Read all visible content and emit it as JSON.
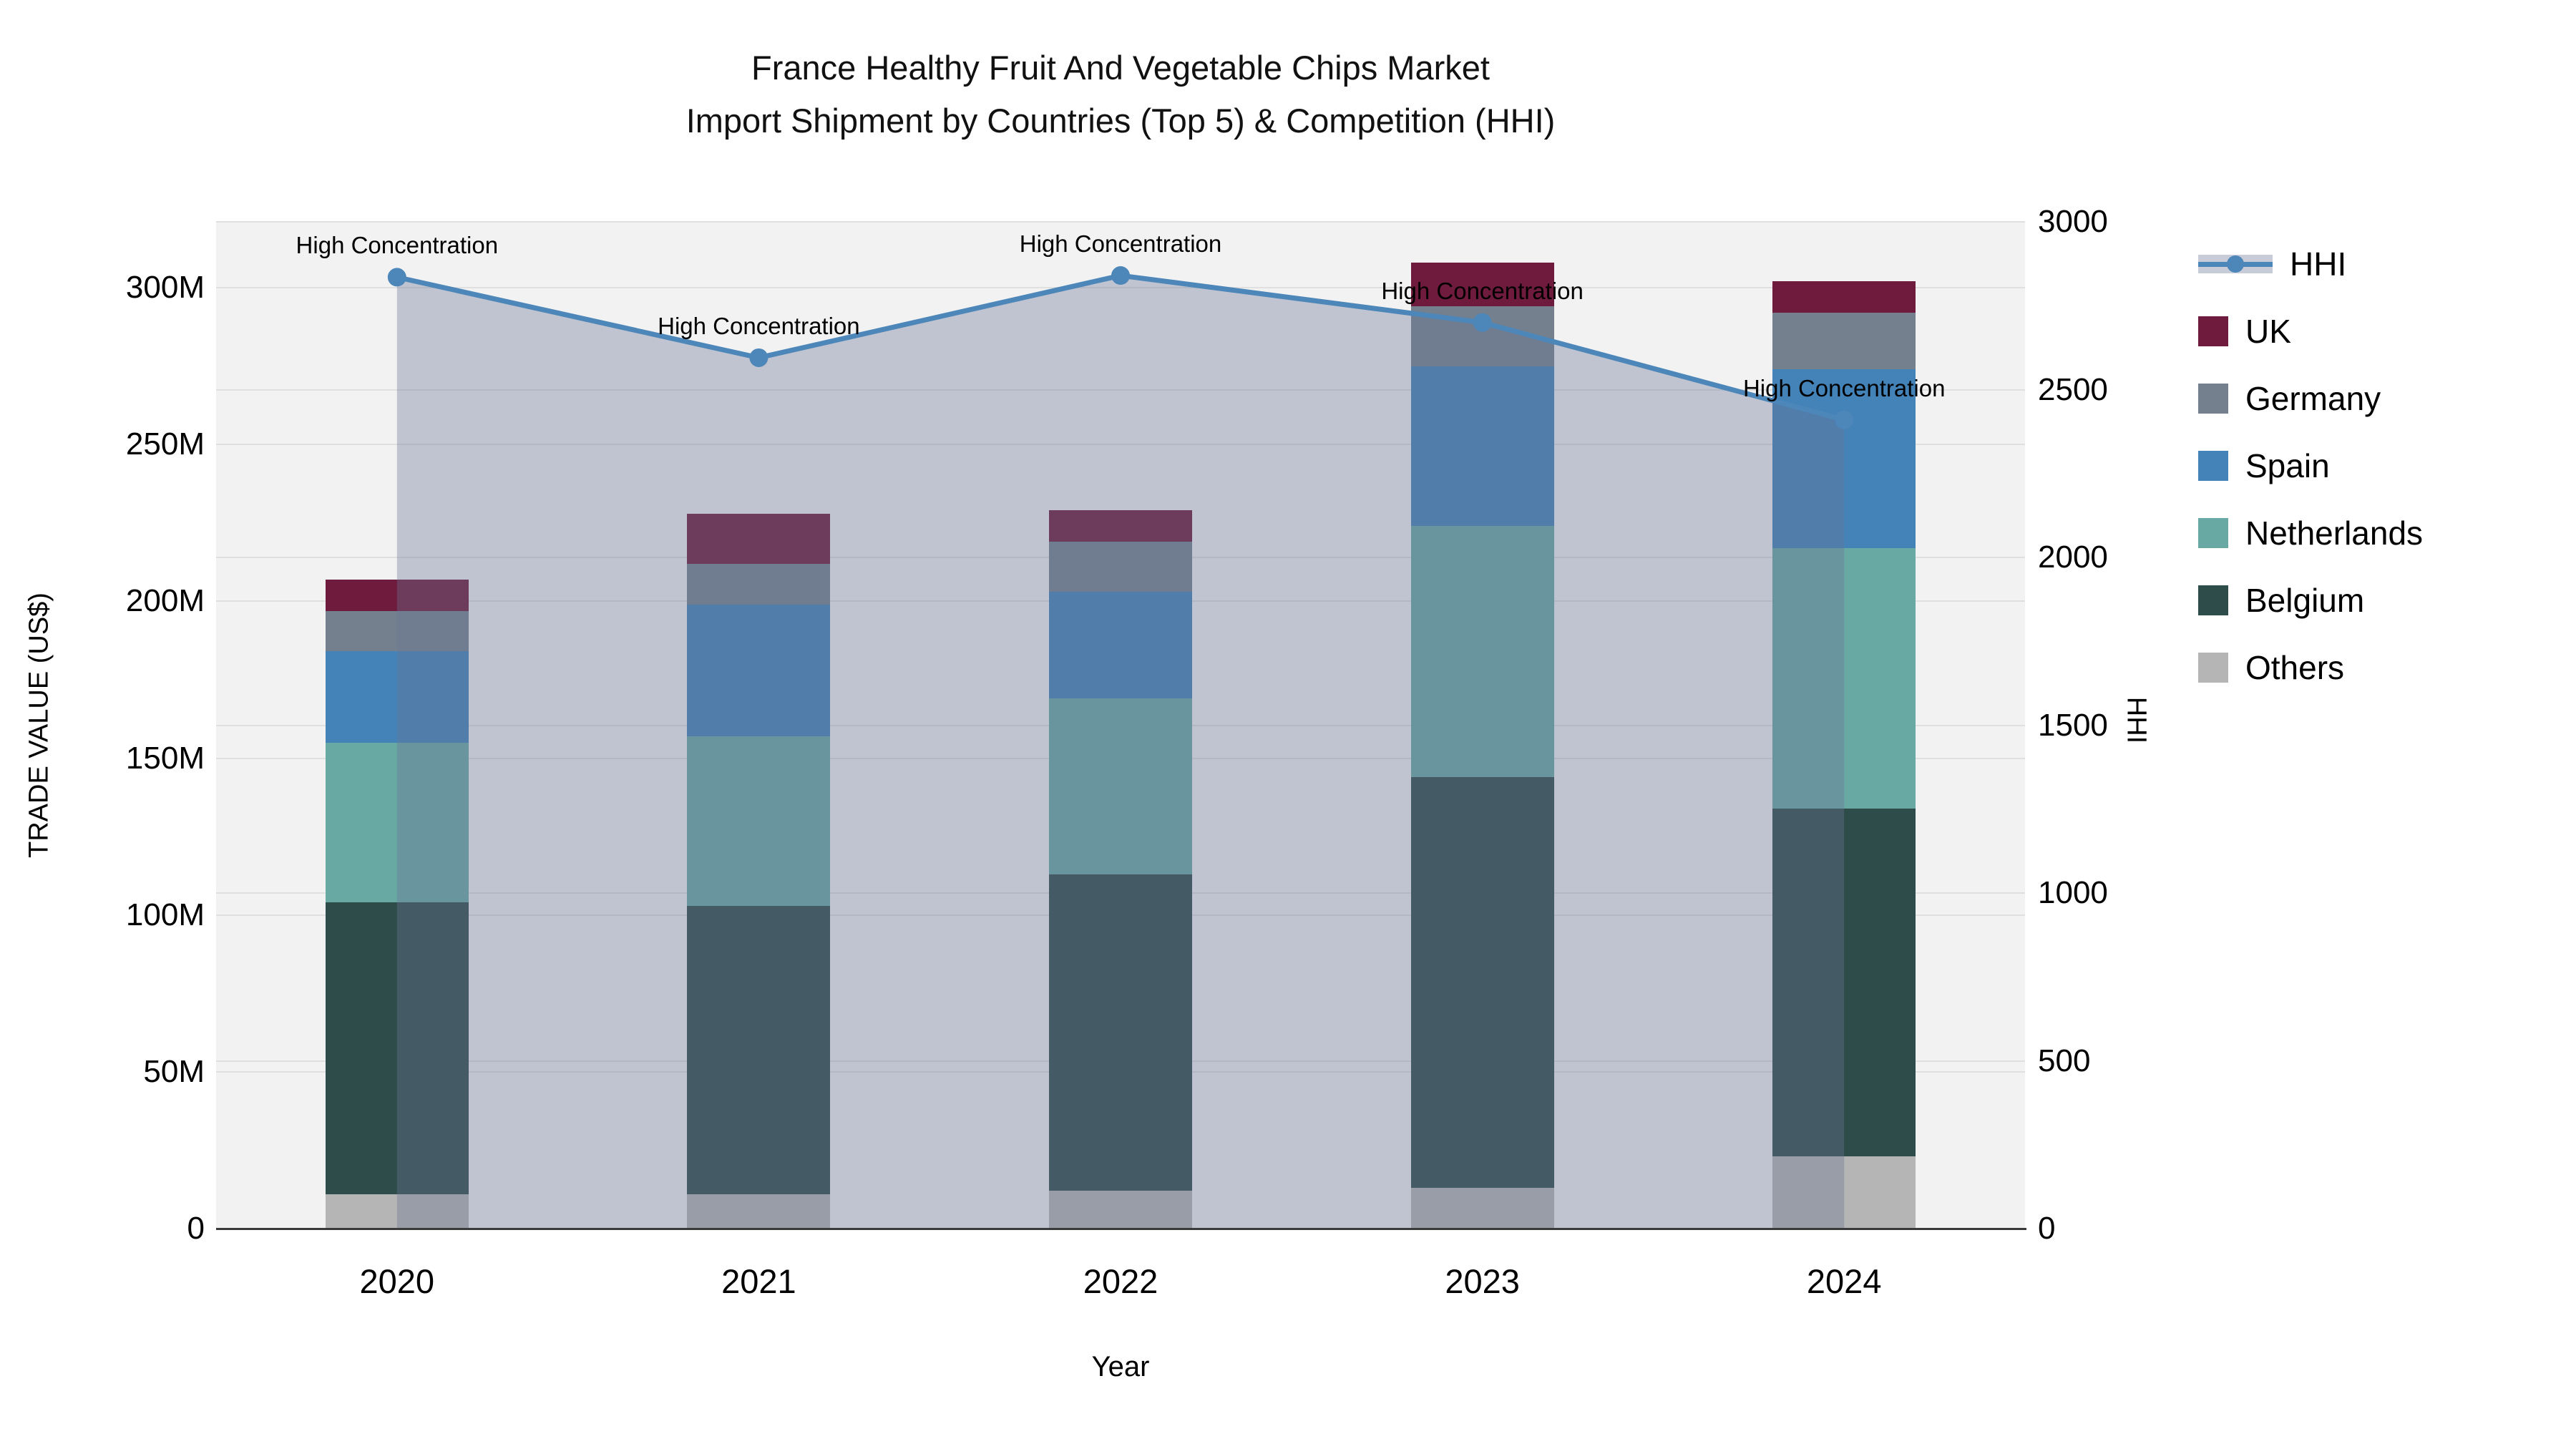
{
  "title": {
    "line1": "France Healthy Fruit And Vegetable Chips Market",
    "line2": "Import Shipment by Countries (Top 5) & Competition (HHI)"
  },
  "axes": {
    "left": {
      "title": "TRADE VALUE (US$)",
      "ticks": [
        "0",
        "50M",
        "100M",
        "150M",
        "200M",
        "250M",
        "300M"
      ]
    },
    "right": {
      "title": "HHI",
      "ticks": [
        "0",
        "500",
        "1000",
        "1500",
        "2000",
        "2500",
        "3000"
      ]
    },
    "bottom": {
      "title": "Year",
      "ticks": [
        "2020",
        "2021",
        "2022",
        "2023",
        "2024"
      ]
    }
  },
  "legend": {
    "hhi_label": "HHI",
    "items": [
      {
        "label": "UK",
        "color": "#6f1b3d"
      },
      {
        "label": "Germany",
        "color": "#74808e"
      },
      {
        "label": "Spain",
        "color": "#4383b8"
      },
      {
        "label": "Netherlands",
        "color": "#69a9a4"
      },
      {
        "label": "Belgium",
        "color": "#2e4c49"
      },
      {
        "label": "Others",
        "color": "#b4b5b4"
      }
    ]
  },
  "chart_data": {
    "type": "bar+line",
    "title": "France Healthy Fruit And Vegetable Chips Market Import Shipment by Countries (Top 5) & Competition (HHI)",
    "categories": [
      "2020",
      "2021",
      "2022",
      "2023",
      "2024"
    ],
    "bar_unit": "M US$",
    "stack_order_bottom_to_top": [
      "Others",
      "Belgium",
      "Netherlands",
      "Spain",
      "Germany",
      "UK"
    ],
    "series": [
      {
        "name": "Others",
        "color": "#b4b5b4",
        "values": [
          11,
          11,
          12,
          13,
          23
        ]
      },
      {
        "name": "Belgium",
        "color": "#2e4c49",
        "values": [
          93,
          92,
          101,
          131,
          111
        ]
      },
      {
        "name": "Netherlands",
        "color": "#69a9a4",
        "values": [
          51,
          54,
          56,
          80,
          83
        ]
      },
      {
        "name": "Spain",
        "color": "#4383b8",
        "values": [
          29,
          42,
          34,
          51,
          57
        ]
      },
      {
        "name": "Germany",
        "color": "#74808e",
        "values": [
          13,
          13,
          16,
          19,
          18
        ]
      },
      {
        "name": "UK",
        "color": "#6f1b3d",
        "values": [
          10,
          16,
          10,
          14,
          10
        ]
      }
    ],
    "bar_totals": [
      207,
      228,
      229,
      308,
      302
    ],
    "line_series": {
      "name": "HHI",
      "color": "#4d86b8",
      "area_fill": "rgba(105,118,150,0.37)",
      "values": [
        2835,
        2595,
        2840,
        2700,
        2410
      ]
    },
    "annotations": [
      "High Concentration",
      "High Concentration",
      "High Concentration",
      "High Concentration",
      "High Concentration"
    ],
    "xlabel": "Year",
    "ylabel_left": "TRADE VALUE (US$)",
    "ylabel_right": "HHI",
    "ylim_left_labeled": [
      0,
      300
    ],
    "ylim_left_full": [
      0,
      321
    ],
    "ylim_right": [
      0,
      3000
    ],
    "left_tick_values": [
      0,
      50,
      100,
      150,
      200,
      250,
      300
    ],
    "right_tick_values": [
      0,
      500,
      1000,
      1500,
      2000,
      2500,
      3000
    ],
    "grid": true,
    "legend_position": "right"
  }
}
